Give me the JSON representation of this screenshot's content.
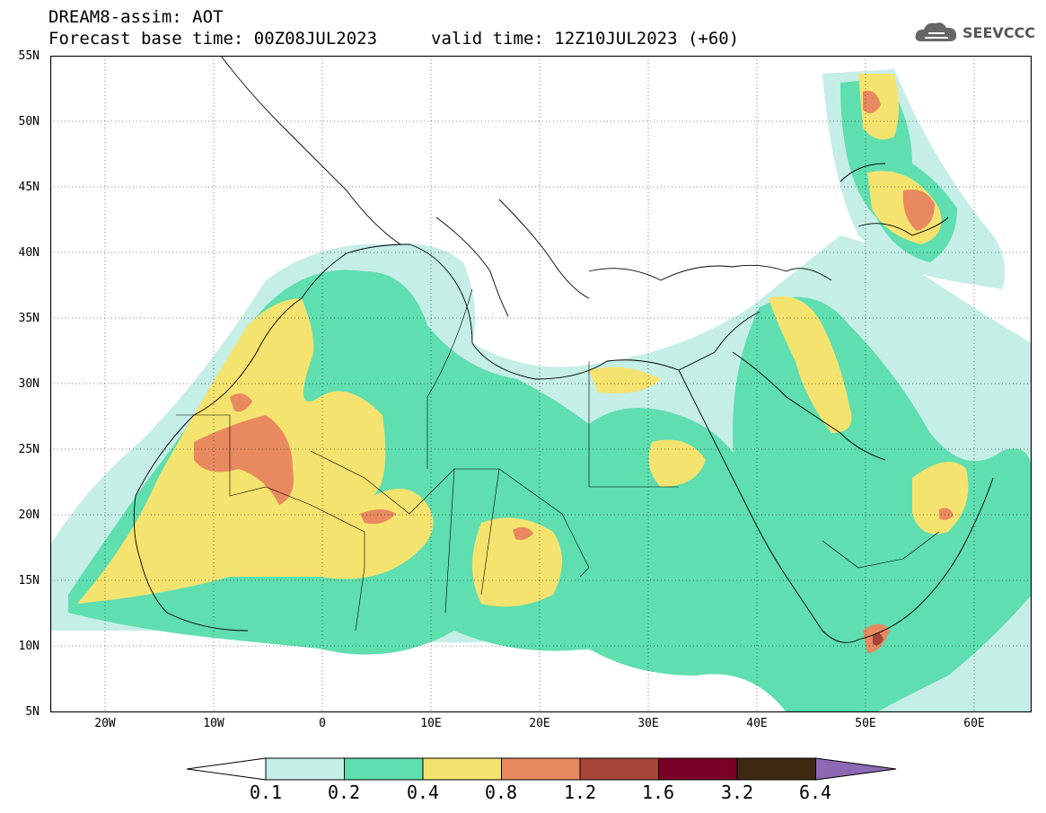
{
  "header": {
    "title": "DREAM8-assim: AOT",
    "base_time": "Forecast base time: 00Z08JUL2023",
    "valid_time": "valid time: 12Z10JUL2023 (+60)"
  },
  "logo": {
    "text": "SEEVCCC",
    "icon": "cloud-icon"
  },
  "axes": {
    "lat_labels": [
      "55N",
      "50N",
      "45N",
      "40N",
      "35N",
      "30N",
      "25N",
      "20N",
      "15N",
      "10N",
      "5N"
    ],
    "lon_labels": [
      "20W",
      "10W",
      "0",
      "10E",
      "20E",
      "30E",
      "40E",
      "50E",
      "60E"
    ],
    "lon_range": [
      -25,
      65
    ],
    "lat_range": [
      5,
      55
    ],
    "grid": "dotted"
  },
  "colorbar": {
    "labels": [
      "0.1",
      "0.2",
      "0.4",
      "0.8",
      "1.2",
      "1.6",
      "3.2",
      "6.4"
    ],
    "colors": [
      "#ffffff",
      "#c4eee6",
      "#5fdeaf",
      "#f5e36f",
      "#e8895f",
      "#a8463a",
      "#7a0025",
      "#3d2812",
      "#8e68b4"
    ]
  }
}
